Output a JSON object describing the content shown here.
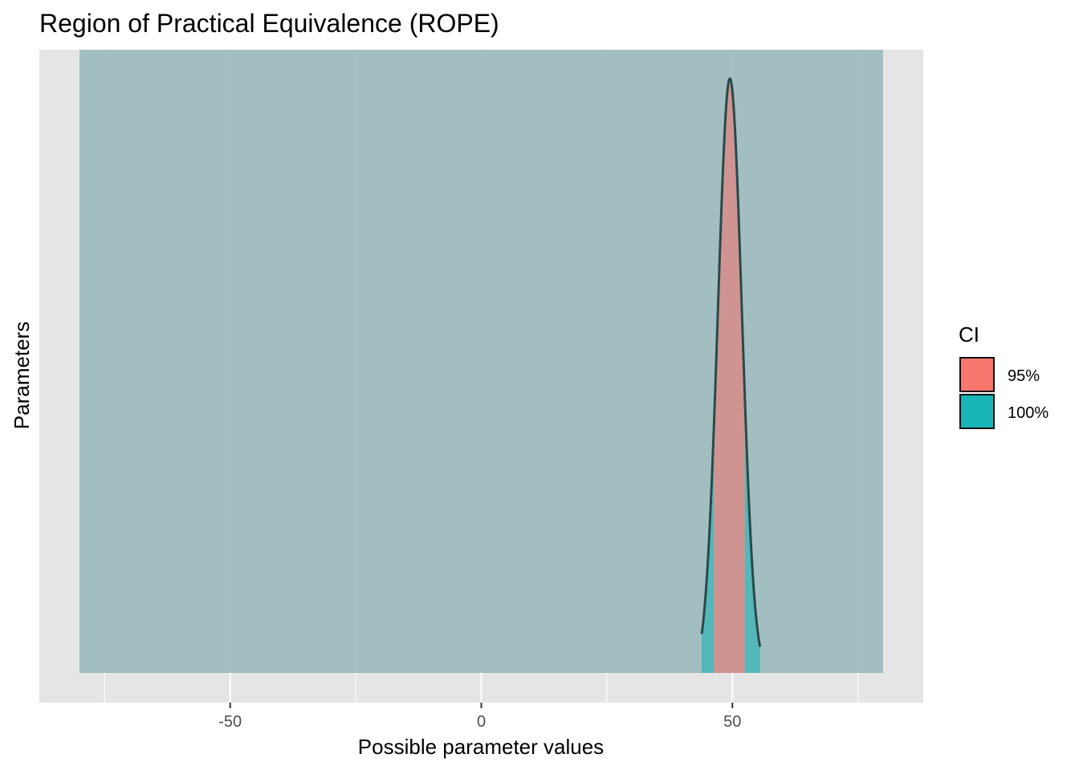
{
  "chart_data": {
    "type": "area",
    "title": "Region of Practical Equivalence (ROPE)",
    "xlabel": "Possible parameter values",
    "ylabel": "Parameters",
    "xlim": [
      -88,
      88
    ],
    "x_ticks": [
      -50,
      0,
      50
    ],
    "x_tick_labels": [
      "-50",
      "0",
      "50"
    ],
    "x_minor_grid": [
      -75,
      -25,
      25,
      75
    ],
    "grid": true,
    "rope": {
      "low": -80,
      "high": 80,
      "color": "#9dbbbd"
    },
    "density": {
      "mean": 49.5,
      "sd": 2.4,
      "range": [
        43.9,
        55.5
      ],
      "ci_95": [
        46.3,
        52.5
      ]
    },
    "legend": {
      "title": "CI",
      "position": "right",
      "entries": [
        {
          "label": "95%",
          "color": "#f8766d"
        },
        {
          "label": "100%",
          "color": "#19b5b8"
        }
      ]
    },
    "colors": {
      "panel": "#e5e5e5",
      "grid": "#ffffff",
      "outline": "#2a4a4a"
    }
  }
}
